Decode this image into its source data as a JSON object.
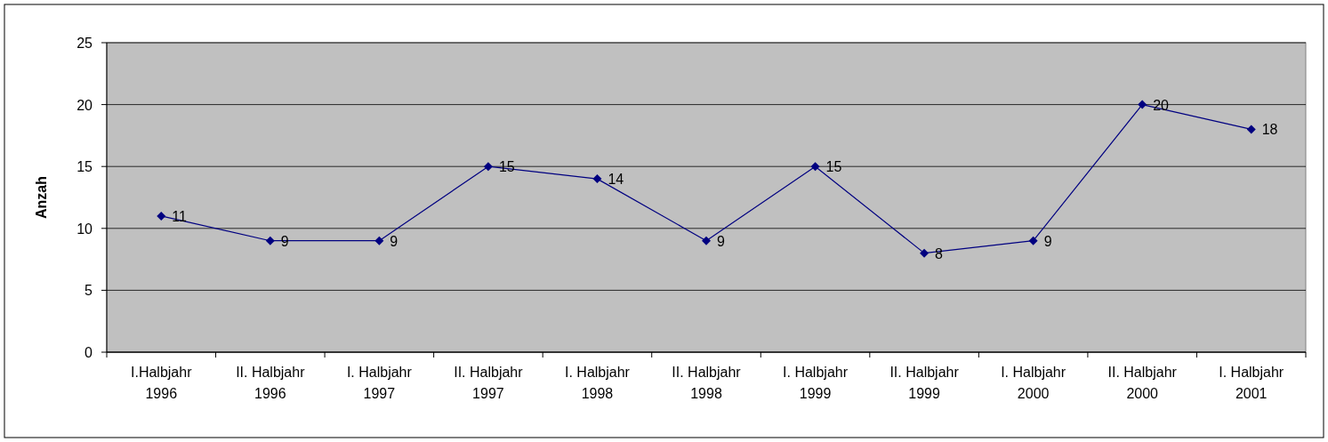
{
  "chart_data": {
    "type": "line",
    "ylabel": "Anzah",
    "categories": [
      "I.Halbjahr\n1996",
      "II. Halbjahr\n1996",
      "I. Halbjahr\n1997",
      "II. Halbjahr\n1997",
      "I. Halbjahr\n1998",
      "II. Halbjahr\n1998",
      "I. Halbjahr\n1999",
      "II. Halbjahr\n1999",
      "I. Halbjahr\n2000",
      "II. Halbjahr\n2000",
      "I. Halbjahr\n2001"
    ],
    "series": [
      {
        "color": "#000080",
        "values": [
          11,
          9,
          9,
          15,
          14,
          9,
          15,
          8,
          9,
          20,
          18
        ]
      }
    ],
    "ylim": [
      0,
      25
    ],
    "yticks": [
      0,
      5,
      10,
      15,
      20,
      25
    ],
    "grid": "y",
    "marker": "diamond",
    "line_style": "solid",
    "data_labels": true
  }
}
